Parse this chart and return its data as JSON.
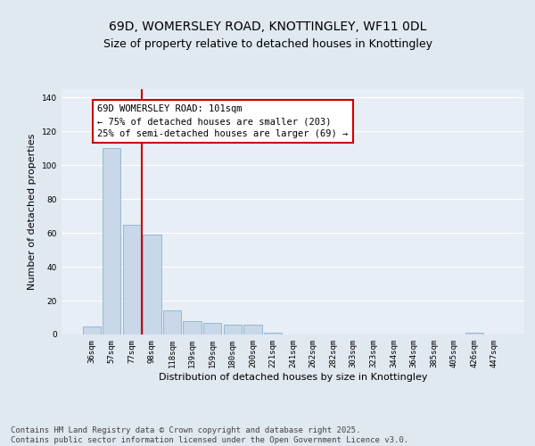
{
  "title_line1": "69D, WOMERSLEY ROAD, KNOTTINGLEY, WF11 0DL",
  "title_line2": "Size of property relative to detached houses in Knottingley",
  "xlabel": "Distribution of detached houses by size in Knottingley",
  "ylabel": "Number of detached properties",
  "categories": [
    "36sqm",
    "57sqm",
    "77sqm",
    "98sqm",
    "118sqm",
    "139sqm",
    "159sqm",
    "180sqm",
    "200sqm",
    "221sqm",
    "241sqm",
    "262sqm",
    "282sqm",
    "303sqm",
    "323sqm",
    "344sqm",
    "364sqm",
    "385sqm",
    "405sqm",
    "426sqm",
    "447sqm"
  ],
  "values": [
    5,
    110,
    65,
    59,
    14,
    8,
    7,
    6,
    6,
    1,
    0,
    0,
    0,
    0,
    0,
    0,
    0,
    0,
    0,
    1,
    0
  ],
  "bar_color": "#c8d8e8",
  "bar_edge_color": "#7aa8c8",
  "vline_color": "#cc0000",
  "vline_x": 2.5,
  "annotation_text": "69D WOMERSLEY ROAD: 101sqm\n← 75% of detached houses are smaller (203)\n25% of semi-detached houses are larger (69) →",
  "annotation_box_color": "#ffffff",
  "annotation_box_edge": "#cc0000",
  "ylim": [
    0,
    145
  ],
  "yticks": [
    0,
    20,
    40,
    60,
    80,
    100,
    120,
    140
  ],
  "bg_color": "#e0e8f0",
  "plot_bg_color": "#e8eef5",
  "footer_text": "Contains HM Land Registry data © Crown copyright and database right 2025.\nContains public sector information licensed under the Open Government Licence v3.0.",
  "title_fontsize": 10,
  "subtitle_fontsize": 9,
  "axis_label_fontsize": 8,
  "tick_fontsize": 6.5,
  "annotation_fontsize": 7.5,
  "footer_fontsize": 6.5
}
